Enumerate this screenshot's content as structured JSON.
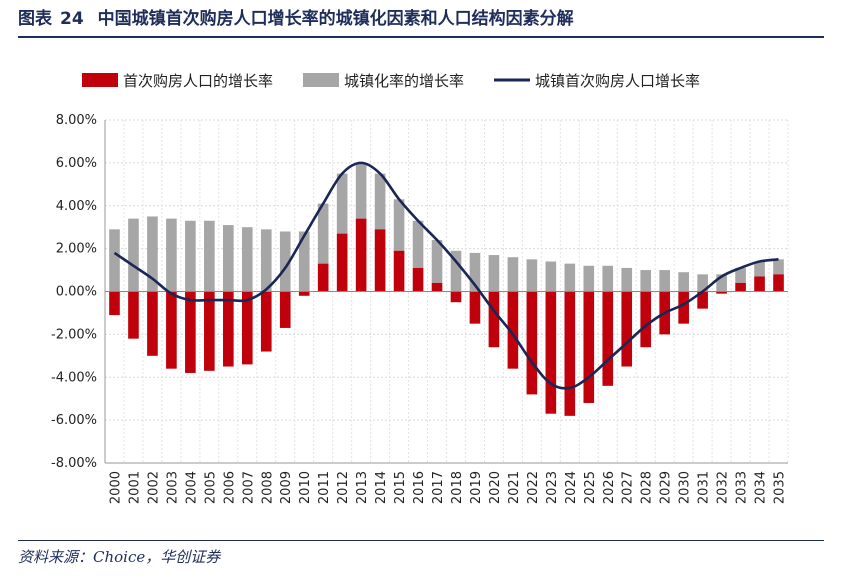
{
  "figure": {
    "label": "图表",
    "number": "24",
    "title": "中国城镇首次购房人口增长率的城镇化因素和人口结构因素分解"
  },
  "source": "资料来源：Choice，华创证券",
  "colors": {
    "series_red": "#c0000b",
    "series_gray": "#a6a6a6",
    "series_line": "#1a2654",
    "title": "#1f2d5a"
  },
  "chart_data": {
    "type": "bar",
    "categories": [
      "2000",
      "2001",
      "2002",
      "2003",
      "2004",
      "2005",
      "2006",
      "2007",
      "2008",
      "2009",
      "2010",
      "2011",
      "2012",
      "2013",
      "2014",
      "2015",
      "2016",
      "2017",
      "2018",
      "2019",
      "2020",
      "2021",
      "2022",
      "2023",
      "2024",
      "2025",
      "2026",
      "2027",
      "2028",
      "2029",
      "2030",
      "2031",
      "2032",
      "2033",
      "2034",
      "2035"
    ],
    "series": [
      {
        "name": "首次购房人口的增长率",
        "kind": "bar",
        "color": "#c0000b",
        "values": [
          -1.1,
          -2.2,
          -3.0,
          -3.6,
          -3.8,
          -3.7,
          -3.5,
          -3.4,
          -2.8,
          -1.7,
          -0.2,
          1.3,
          2.7,
          3.4,
          2.9,
          1.9,
          1.1,
          0.4,
          -0.5,
          -1.5,
          -2.6,
          -3.6,
          -4.8,
          -5.7,
          -5.8,
          -5.2,
          -4.4,
          -3.5,
          -2.6,
          -2.0,
          -1.5,
          -0.8,
          -0.1,
          0.4,
          0.7,
          0.8
        ]
      },
      {
        "name": "城镇化率的增长率",
        "kind": "bar",
        "color": "#a6a6a6",
        "values": [
          2.9,
          3.4,
          3.5,
          3.4,
          3.3,
          3.3,
          3.1,
          3.0,
          2.9,
          2.8,
          2.8,
          2.8,
          2.8,
          2.6,
          2.6,
          2.4,
          2.2,
          2.0,
          1.9,
          1.8,
          1.7,
          1.6,
          1.5,
          1.4,
          1.3,
          1.2,
          1.2,
          1.1,
          1.0,
          1.0,
          0.9,
          0.8,
          0.8,
          0.7,
          0.7,
          0.7
        ]
      },
      {
        "name": "城镇首次购房人口增长率",
        "kind": "line",
        "color": "#1a2654",
        "values": [
          1.8,
          1.2,
          0.6,
          -0.1,
          -0.4,
          -0.4,
          -0.4,
          -0.4,
          0.1,
          1.1,
          2.6,
          4.1,
          5.5,
          6.0,
          5.5,
          4.3,
          3.3,
          2.4,
          1.4,
          0.3,
          -0.9,
          -2.0,
          -3.3,
          -4.3,
          -4.5,
          -4.0,
          -3.2,
          -2.4,
          -1.6,
          -1.0,
          -0.6,
          0.0,
          0.7,
          1.1,
          1.4,
          1.5
        ]
      }
    ],
    "y_ticks": [
      "8.00%",
      "6.00%",
      "4.00%",
      "2.00%",
      "0.00%",
      "-2.00%",
      "-4.00%",
      "-6.00%",
      "-8.00%"
    ],
    "ylim": [
      -8,
      8
    ],
    "grid": true,
    "legend_position": "top"
  }
}
